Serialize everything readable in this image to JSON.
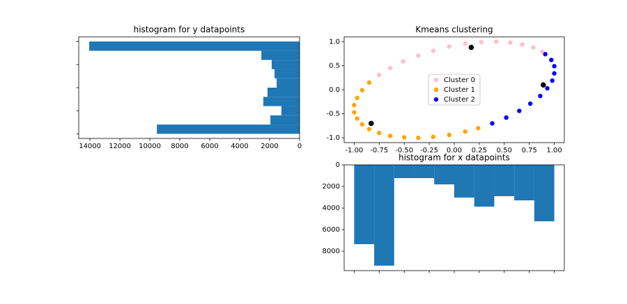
{
  "chart_data": [
    {
      "type": "histogram",
      "orientation": "horizontal",
      "title": "histogram for y datapoints",
      "bins": [
        -1,
        -0.8,
        -0.6,
        -0.4,
        -0.2,
        0,
        0.2,
        0.4,
        0.6,
        0.8,
        1
      ],
      "values": [
        9530,
        1950,
        1210,
        2420,
        2140,
        1530,
        1670,
        1860,
        2550,
        14050
      ],
      "color": "#1f77b4",
      "xlim": [
        14750,
        0
      ],
      "xticks": [
        14000,
        12000,
        10000,
        8000,
        6000,
        4000,
        2000,
        0
      ],
      "ylim": [
        -1.1,
        1.1
      ],
      "yticks": [
        -1,
        -0.5,
        0,
        0.5,
        1
      ],
      "ytick_labels": false
    },
    {
      "type": "scatter",
      "title": "Kmeans clustering",
      "xlim": [
        -1.1,
        1.1
      ],
      "xticks": [
        {
          "value": -1,
          "label": "-1.00"
        },
        -0.75,
        {
          "value": -0.5,
          "label": "-0.50"
        },
        -0.25,
        {
          "value": 0,
          "label": "0.00"
        },
        0.25,
        {
          "value": 0.5,
          "label": "0.50"
        },
        0.75,
        {
          "value": 1,
          "label": "1.00"
        }
      ],
      "ylim": [
        -1.1,
        1.1
      ],
      "yticks": [
        {
          "value": -1,
          "label": "-1.0"
        },
        -0.5,
        {
          "value": 0,
          "label": "0.0"
        },
        0.5,
        {
          "value": 1,
          "label": "1.0"
        }
      ],
      "legend": "center",
      "series": [
        {
          "name": "Cluster 0",
          "color": "pink",
          "x": [
            0.88,
            0.79,
            0.68,
            0.56,
            0.42,
            0.27,
            0.11,
            -0.05,
            -0.21,
            -0.36,
            -0.51,
            -0.64,
            -0.75
          ],
          "values": [
            0.79,
            0.88,
            0.94,
            0.98,
            1.0,
            0.99,
            0.96,
            0.9,
            0.81,
            0.71,
            0.59,
            0.45,
            0.31
          ]
        },
        {
          "name": "Cluster 1",
          "color": "orange",
          "x": [
            -0.85,
            -0.92,
            -0.97,
            -1.0,
            -1.0,
            -0.97,
            -0.92,
            -0.85,
            -0.75,
            -0.64,
            -0.5,
            -0.36,
            -0.21,
            -0.05,
            0.11,
            0.24
          ],
          "values": [
            0.15,
            -0.01,
            -0.17,
            -0.32,
            -0.47,
            -0.6,
            -0.72,
            -0.82,
            -0.9,
            -0.96,
            -0.99,
            -1.0,
            -0.98,
            -0.94,
            -0.87,
            -0.8
          ]
        },
        {
          "name": "Cluster 2",
          "color": "blue",
          "x": [
            0.38,
            0.52,
            0.65,
            0.76,
            0.86,
            0.93,
            0.98,
            1.0,
            1.0,
            0.97,
            0.91
          ],
          "values": [
            -0.7,
            -0.58,
            -0.44,
            -0.29,
            -0.13,
            0.03,
            0.19,
            0.34,
            0.49,
            0.62,
            0.74
          ]
        },
        {
          "color": "black",
          "x": [
            0.17,
            -0.83,
            0.89
          ],
          "values": [
            0.88,
            -0.7,
            0.1
          ]
        }
      ]
    },
    {
      "type": "histogram",
      "orientation": "vertical",
      "title": "histogram for x datapoints",
      "bins": [
        -1,
        -0.8,
        -0.6,
        -0.4,
        -0.2,
        0,
        0.2,
        0.4,
        0.6,
        0.8,
        1
      ],
      "values": [
        7350,
        9340,
        1230,
        1230,
        1810,
        3030,
        3870,
        2900,
        3290,
        5230
      ],
      "color": "#1f77b4",
      "xlim": [
        -1.1,
        1.1
      ],
      "xticks": [
        -1,
        -0.75,
        -0.5,
        -0.25,
        0,
        0.25,
        0.5,
        0.75,
        1
      ],
      "xtick_labels": false,
      "ylim": [
        9800,
        0
      ],
      "yticks": [
        0,
        2000,
        4000,
        6000,
        8000
      ]
    }
  ]
}
